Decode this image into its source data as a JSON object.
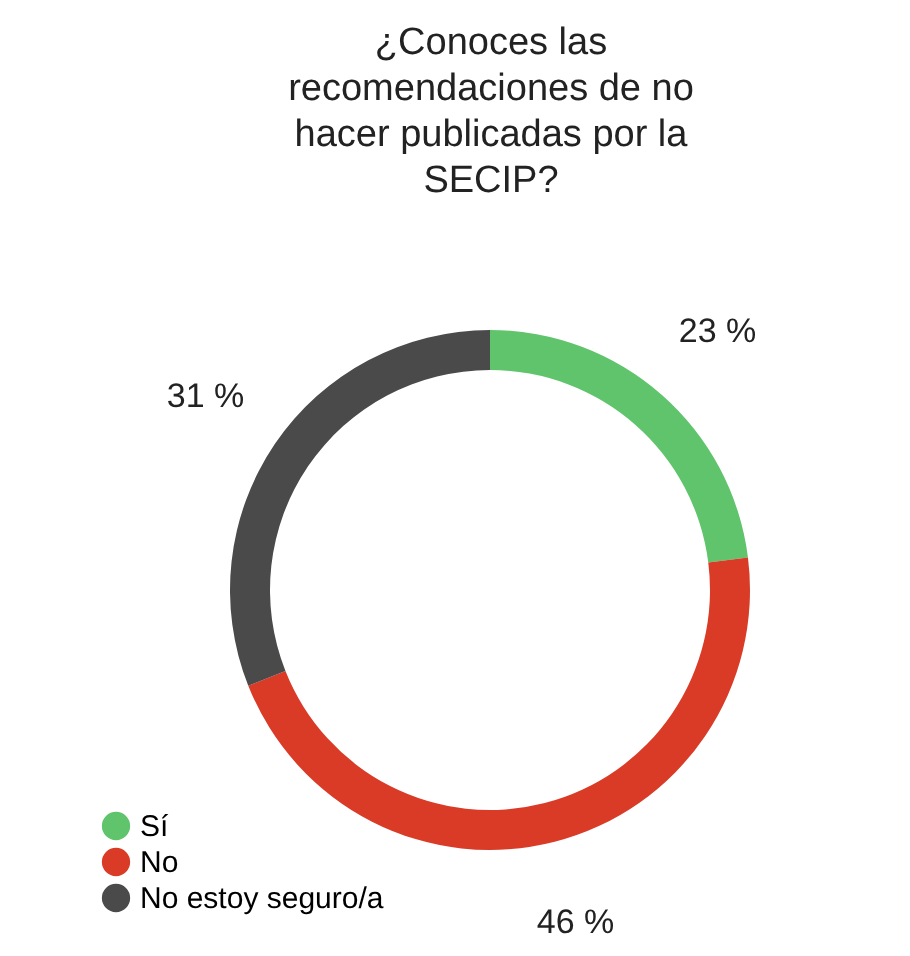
{
  "chart_data": {
    "type": "donut",
    "title": "¿Conoces las recomendaciones de no hacer publicadas por la SECIP?",
    "categories": [
      "Sí",
      "No",
      "No estoy seguro/a"
    ],
    "values": [
      23,
      46,
      31
    ],
    "colors": [
      "#5fc46b",
      "#d93b27",
      "#4a4a4a"
    ],
    "value_labels": [
      "23 %",
      "46 %",
      "31 %"
    ],
    "legend": "bottom left"
  }
}
